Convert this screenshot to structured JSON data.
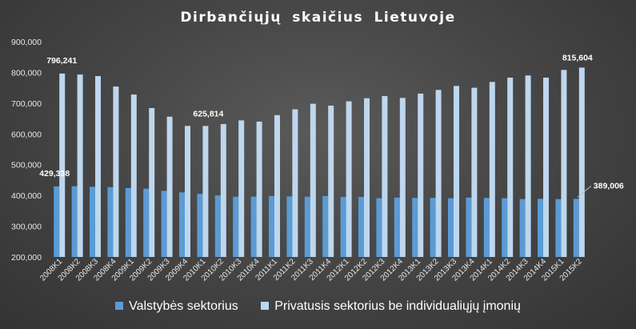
{
  "chart_data": {
    "type": "bar",
    "title": "Dirbančiųjų skaičius Lietuvoje",
    "xlabel": "",
    "ylabel": "",
    "ylim": [
      200000,
      900000
    ],
    "yticks": [
      "200,000",
      "300,000",
      "400,000",
      "500,000",
      "600,000",
      "700,000",
      "800,000",
      "900,000"
    ],
    "grid": false,
    "legend_position": "bottom",
    "categories": [
      "2008K1",
      "2008K2",
      "2008K3",
      "2008K4",
      "2009K1",
      "2009K2",
      "2009K3",
      "2009K4",
      "2010K1",
      "2010K2",
      "2010K3",
      "2010K4",
      "2011K1",
      "2011K2",
      "2011K3",
      "2011K4",
      "2012K1",
      "2012K2",
      "2012K3",
      "2012K4",
      "2013K1",
      "2013K2",
      "2013K3",
      "2013K4",
      "2014K1",
      "2014K2",
      "2014K3",
      "2014K4",
      "2015K1",
      "2015K2"
    ],
    "series": [
      {
        "name": "Valstybės sektorius",
        "color": "#5b9bd5",
        "values": [
          429338,
          430000,
          428000,
          427000,
          424000,
          422000,
          415000,
          410000,
          405000,
          400000,
          396000,
          396000,
          398000,
          397000,
          396000,
          398000,
          395000,
          395000,
          391000,
          393000,
          392000,
          392000,
          391000,
          393000,
          392000,
          391000,
          388000,
          389000,
          388000,
          389006
        ]
      },
      {
        "name": "Privatusis sektorius be individualiųjų įmonių",
        "color": "#bdd7ee",
        "values": [
          796241,
          793000,
          788000,
          754000,
          728000,
          684000,
          656000,
          626000,
          625814,
          632000,
          644000,
          640000,
          661000,
          680000,
          698000,
          692000,
          706000,
          716000,
          723000,
          717000,
          731000,
          743000,
          756000,
          750000,
          769000,
          783000,
          790000,
          783000,
          808000,
          815604
        ]
      }
    ],
    "data_labels": [
      {
        "series": 0,
        "index": 0,
        "text": "429,338"
      },
      {
        "series": 1,
        "index": 0,
        "text": "796,241"
      },
      {
        "series": 1,
        "index": 8,
        "text": "625,814"
      },
      {
        "series": 1,
        "index": 29,
        "text": "815,604"
      },
      {
        "series": 0,
        "index": 29,
        "text": "389,006"
      }
    ]
  }
}
